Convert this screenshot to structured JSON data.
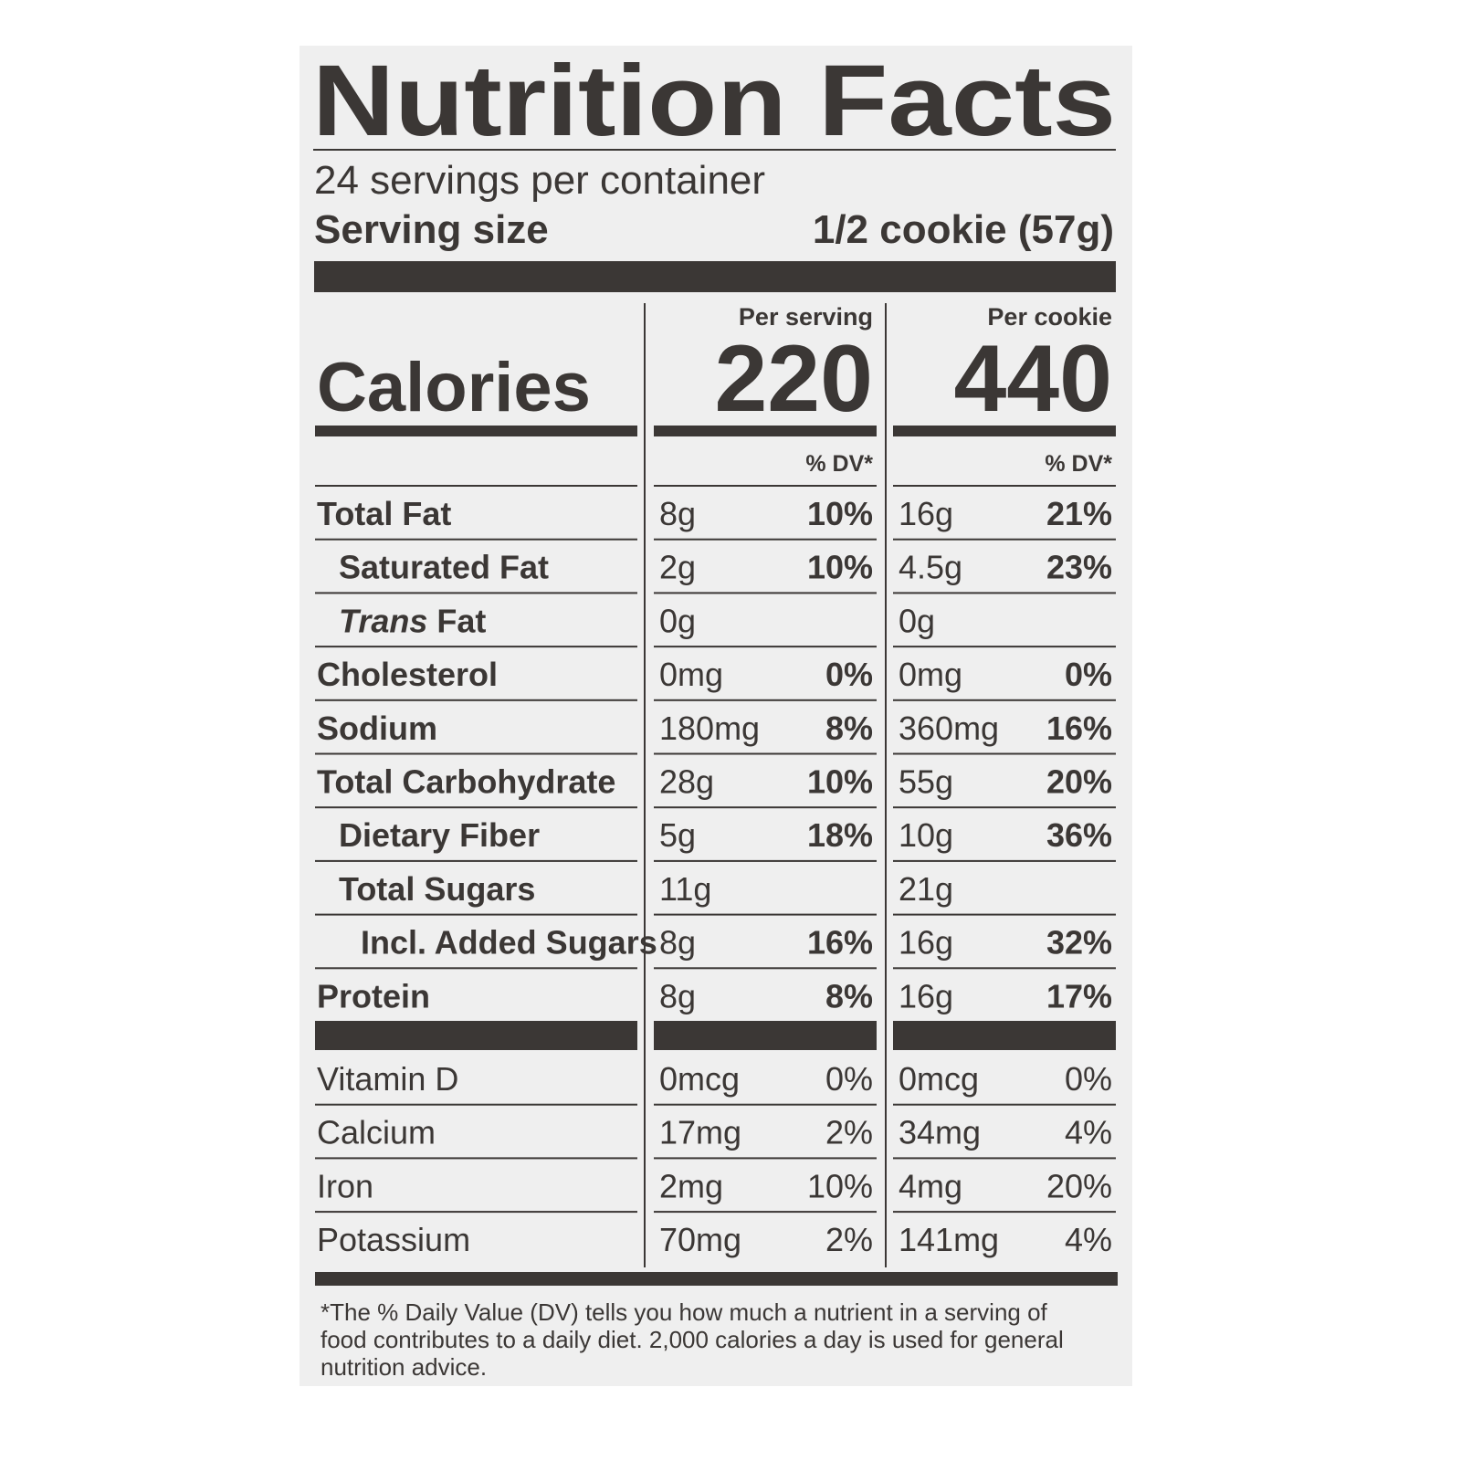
{
  "title": "Nutrition Facts",
  "servings": "24 servings per container",
  "serving_size": {
    "label": "Serving size",
    "value": "1/2 cookie (57g)"
  },
  "calories": {
    "label": "Calories"
  },
  "columns": [
    {
      "heading": "Per serving",
      "calories": 220,
      "dv_heading": "% DV*"
    },
    {
      "heading": "Per cookie",
      "calories": 440,
      "dv_heading": "% DV*"
    }
  ],
  "nutrients": [
    {
      "name": "Total Fat",
      "style": "bold",
      "values": [
        [
          "8g",
          "10%"
        ],
        [
          "16g",
          "21%"
        ]
      ]
    },
    {
      "name": "Saturated Fat",
      "style": "indent",
      "values": [
        [
          "2g",
          "10%"
        ],
        [
          "4.5g",
          "23%"
        ]
      ]
    },
    {
      "name_italic": "Trans",
      "name": "Fat",
      "style": "indent",
      "values": [
        [
          "0g"
        ],
        [
          "0g"
        ]
      ]
    },
    {
      "name": "Cholesterol",
      "style": "bold",
      "values": [
        [
          "0mg",
          "0%"
        ],
        [
          "0mg",
          "0%"
        ]
      ]
    },
    {
      "name": "Sodium",
      "style": "bold",
      "values": [
        [
          "180mg",
          "8%"
        ],
        [
          "360mg",
          "16%"
        ]
      ]
    },
    {
      "name": "Total Carbohydrate",
      "style": "bold",
      "values": [
        [
          "28g",
          "10%"
        ],
        [
          "55g",
          "20%"
        ]
      ]
    },
    {
      "name": "Dietary Fiber",
      "style": "indent",
      "values": [
        [
          "5g",
          "18%"
        ],
        [
          "10g",
          "36%"
        ]
      ]
    },
    {
      "name": "Total Sugars",
      "style": "indent",
      "values": [
        [
          "11g"
        ],
        [
          "21g"
        ]
      ]
    },
    {
      "name": "Incl. Added Sugars",
      "style": "indent2",
      "values": [
        [
          "8g",
          "16%"
        ],
        [
          "16g",
          "32%"
        ]
      ]
    },
    {
      "name": "Protein",
      "style": "bold",
      "values": [
        [
          "8g",
          "8%"
        ],
        [
          "16g",
          "17%"
        ]
      ]
    }
  ],
  "vitamins": [
    {
      "name": "Vitamin D",
      "values": [
        [
          "0mcg",
          "0%"
        ],
        [
          "0mcg",
          "0%"
        ]
      ]
    },
    {
      "name": "Calcium",
      "values": [
        [
          "17mg",
          "2%"
        ],
        [
          "34mg",
          "4%"
        ]
      ]
    },
    {
      "name": "Iron",
      "values": [
        [
          "2mg",
          "10%"
        ],
        [
          "4mg",
          "20%"
        ]
      ]
    },
    {
      "name": "Potassium",
      "values": [
        [
          "70mg",
          "2%"
        ],
        [
          "141mg",
          "4%"
        ]
      ]
    }
  ],
  "footnote": [
    "*The % Daily Value (DV) tells you how much a nutrient in a serving of",
    "food contributes to a daily diet. 2,000 calories a day is used for general",
    "nutrition advice."
  ]
}
